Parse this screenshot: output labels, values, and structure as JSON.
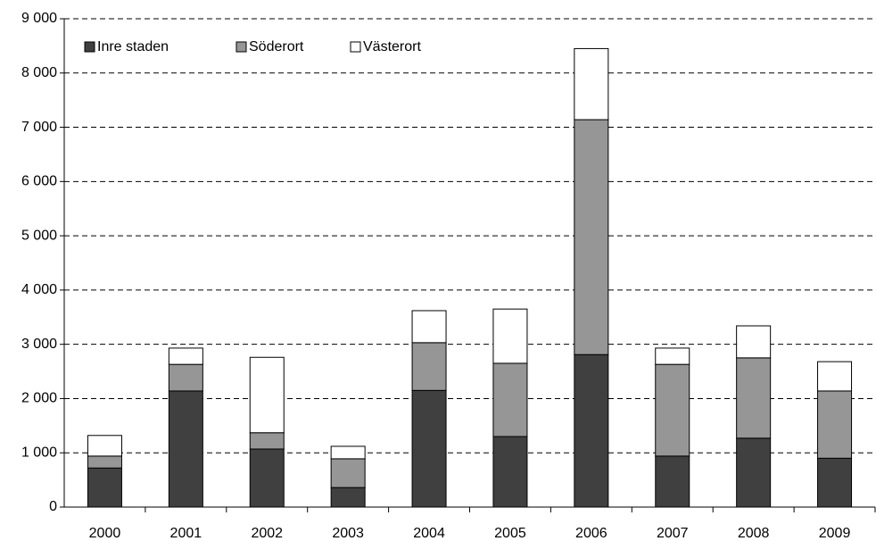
{
  "chart_data": {
    "type": "stacked_bar",
    "categories": [
      "2000",
      "2001",
      "2002",
      "2003",
      "2004",
      "2005",
      "2006",
      "2007",
      "2008",
      "2009"
    ],
    "series": [
      {
        "name": "Inre staden",
        "color": "#404040",
        "values": [
          720,
          2140,
          1070,
          360,
          2150,
          1300,
          2810,
          940,
          1270,
          900
        ]
      },
      {
        "name": "Söderort",
        "color": "#969696",
        "values": [
          220,
          490,
          300,
          530,
          880,
          1350,
          4330,
          1690,
          1480,
          1240
        ]
      },
      {
        "name": "Västerort",
        "color": "#ffffff",
        "values": [
          380,
          300,
          1390,
          230,
          590,
          1000,
          1310,
          300,
          590,
          540
        ]
      }
    ],
    "ylim": [
      0,
      9000
    ],
    "yticks": [
      0,
      {
        "value": 1000,
        "label": "1 000"
      },
      {
        "value": 2000,
        "label": "2 000"
      },
      {
        "value": 3000,
        "label": "3 000"
      },
      {
        "value": 4000,
        "label": "4 000"
      },
      {
        "value": 5000,
        "label": "5 000"
      },
      {
        "value": 6000,
        "label": "6 000"
      },
      {
        "value": 7000,
        "label": "7 000"
      },
      {
        "value": 8000,
        "label": "8 000"
      },
      {
        "value": 9000,
        "label": "9 000"
      }
    ],
    "grid": true,
    "legend": "top-left"
  }
}
